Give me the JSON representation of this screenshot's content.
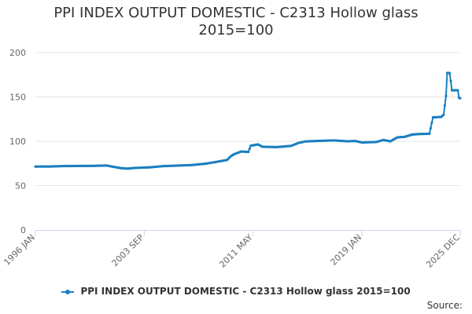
{
  "chart_data": {
    "type": "line",
    "title_lines": [
      "PPI INDEX OUTPUT DOMESTIC - C2313 Hollow glass",
      "2015=100"
    ],
    "xlabel": "",
    "ylabel": "",
    "x_range": [
      "1996-01",
      "2025-12"
    ],
    "x_tick_labels": [
      {
        "date": "1996-01",
        "label": "1996 JAN"
      },
      {
        "date": "2003-09",
        "label": "2003 SEP"
      },
      {
        "date": "2011-05",
        "label": "2011 MAY"
      },
      {
        "date": "2019-01",
        "label": "2019 JAN"
      },
      {
        "date": "2025-12",
        "label": "2025 DEC"
      }
    ],
    "ylim": [
      0,
      200
    ],
    "y_ticks": [
      0,
      50,
      100,
      150,
      200
    ],
    "grid": "horizontal",
    "legend_position": "bottom-center",
    "series": [
      {
        "name": "PPI INDEX OUTPUT DOMESTIC - C2313 Hollow glass 2015=100",
        "color": "#1a7fc0",
        "points": [
          [
            "1996-01",
            71.5
          ],
          [
            "1997-01",
            71.6
          ],
          [
            "1998-01",
            72.1
          ],
          [
            "1999-01",
            72.2
          ],
          [
            "2000-01",
            72.3
          ],
          [
            "2001-01",
            72.7
          ],
          [
            "2001-07",
            71.2
          ],
          [
            "2002-01",
            69.8
          ],
          [
            "2002-07",
            69.2
          ],
          [
            "2003-01",
            70.0
          ],
          [
            "2004-01",
            70.6
          ],
          [
            "2005-01",
            72.0
          ],
          [
            "2006-01",
            72.6
          ],
          [
            "2007-01",
            73.2
          ],
          [
            "2008-01",
            74.8
          ],
          [
            "2009-01",
            77.5
          ],
          [
            "2009-07",
            79.0
          ],
          [
            "2009-10",
            83.0
          ],
          [
            "2010-01",
            85.5
          ],
          [
            "2010-07",
            88.5
          ],
          [
            "2011-01",
            88.0
          ],
          [
            "2011-03",
            95.0
          ],
          [
            "2011-09",
            96.5
          ],
          [
            "2012-01",
            93.8
          ],
          [
            "2013-01",
            93.5
          ],
          [
            "2014-01",
            94.8
          ],
          [
            "2014-07",
            98.0
          ],
          [
            "2015-01",
            99.8
          ],
          [
            "2016-01",
            100.5
          ],
          [
            "2017-01",
            101.0
          ],
          [
            "2018-01",
            100.0
          ],
          [
            "2018-07",
            100.4
          ],
          [
            "2019-01",
            98.7
          ],
          [
            "2020-01",
            99.2
          ],
          [
            "2020-07",
            101.5
          ],
          [
            "2021-01",
            100.0
          ],
          [
            "2021-07",
            104.5
          ],
          [
            "2022-01",
            105.0
          ],
          [
            "2022-07",
            107.5
          ],
          [
            "2023-01",
            108.2
          ],
          [
            "2023-10",
            108.5
          ],
          [
            "2024-01",
            127.0
          ],
          [
            "2024-08",
            127.5
          ],
          [
            "2024-10",
            130.0
          ],
          [
            "2024-12",
            151.0
          ],
          [
            "2025-01",
            177.0
          ],
          [
            "2025-03",
            177.0
          ],
          [
            "2025-04",
            168.0
          ],
          [
            "2025-05",
            157.5
          ],
          [
            "2025-10",
            157.5
          ],
          [
            "2025-11",
            149.0
          ],
          [
            "2025-12",
            148.5
          ]
        ]
      }
    ]
  },
  "legend": {
    "label": "PPI INDEX OUTPUT DOMESTIC - C2313 Hollow glass 2015=100",
    "color": "#1a7fc0"
  },
  "credits": {
    "text": "Source:"
  }
}
